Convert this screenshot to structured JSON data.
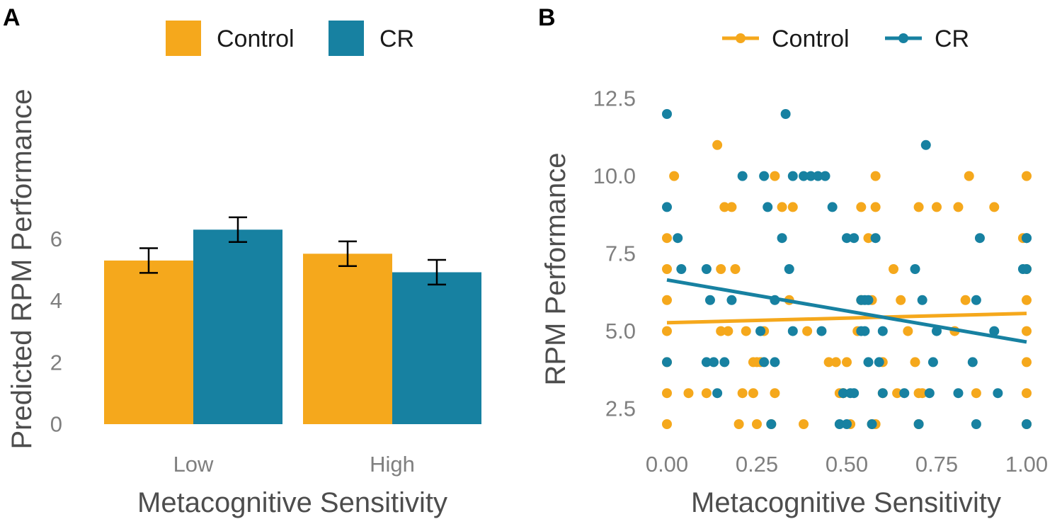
{
  "colors": {
    "control": "#F5A81C",
    "cr": "#1781A1",
    "errorbar": "#000000",
    "tick": "#7f7f7f",
    "title": "#4d4d4d"
  },
  "chart_data": [
    {
      "type": "bar",
      "panel_label": "A",
      "categories": [
        "Low",
        "High"
      ],
      "series": [
        {
          "name": "Control",
          "values": [
            5.3,
            5.52
          ],
          "errors": [
            0.4,
            0.4
          ]
        },
        {
          "name": "CR",
          "values": [
            6.3,
            4.92
          ],
          "errors": [
            0.4,
            0.4
          ]
        }
      ],
      "xlabel": "Metacognitive Sensitivity",
      "ylabel": "Predicted RPM Performance",
      "ylim": [
        0,
        7
      ],
      "yticks": [
        "0",
        "2",
        "4",
        "6"
      ],
      "legend": [
        "Control",
        "CR"
      ],
      "legend_position": "top",
      "grid": false
    },
    {
      "type": "scatter",
      "panel_label": "B",
      "xlabel": "Metacognitive Sensitivity",
      "ylabel": "RPM Performance",
      "xlim": [
        0,
        1
      ],
      "ylim": [
        1.9,
        12.3
      ],
      "xticks": [
        "0.00",
        "0.25",
        "0.50",
        "0.75",
        "1.00"
      ],
      "yticks": [
        "2.5",
        "5.0",
        "7.5",
        "10.0",
        "12.5"
      ],
      "legend": [
        "Control",
        "CR"
      ],
      "legend_position": "top",
      "grid": false,
      "series": [
        {
          "name": "Control",
          "points": [
            [
              0.0,
              2
            ],
            [
              0.0,
              3
            ],
            [
              0.0,
              4
            ],
            [
              0.0,
              5
            ],
            [
              0.0,
              6
            ],
            [
              0.0,
              7
            ],
            [
              0.0,
              8
            ],
            [
              0.02,
              10
            ],
            [
              0.06,
              3
            ],
            [
              0.11,
              3
            ],
            [
              0.14,
              11
            ],
            [
              0.15,
              5
            ],
            [
              0.15,
              7
            ],
            [
              0.16,
              9
            ],
            [
              0.17,
              5
            ],
            [
              0.18,
              9
            ],
            [
              0.19,
              7
            ],
            [
              0.2,
              2
            ],
            [
              0.21,
              3
            ],
            [
              0.22,
              5
            ],
            [
              0.24,
              3
            ],
            [
              0.24,
              4
            ],
            [
              0.25,
              2
            ],
            [
              0.25,
              4
            ],
            [
              0.26,
              4
            ],
            [
              0.27,
              5
            ],
            [
              0.29,
              2
            ],
            [
              0.3,
              3
            ],
            [
              0.3,
              10
            ],
            [
              0.32,
              9
            ],
            [
              0.34,
              6
            ],
            [
              0.35,
              9
            ],
            [
              0.38,
              2
            ],
            [
              0.39,
              5
            ],
            [
              0.45,
              4
            ],
            [
              0.47,
              4
            ],
            [
              0.48,
              3
            ],
            [
              0.49,
              3
            ],
            [
              0.49,
              3
            ],
            [
              0.5,
              4
            ],
            [
              0.51,
              2
            ],
            [
              0.53,
              5
            ],
            [
              0.54,
              6
            ],
            [
              0.54,
              9
            ],
            [
              0.56,
              8
            ],
            [
              0.57,
              2
            ],
            [
              0.57,
              6
            ],
            [
              0.58,
              2
            ],
            [
              0.58,
              9
            ],
            [
              0.58,
              10
            ],
            [
              0.6,
              3
            ],
            [
              0.6,
              4
            ],
            [
              0.63,
              7
            ],
            [
              0.64,
              3
            ],
            [
              0.65,
              6
            ],
            [
              0.67,
              5
            ],
            [
              0.69,
              4
            ],
            [
              0.7,
              2
            ],
            [
              0.7,
              3
            ],
            [
              0.7,
              9
            ],
            [
              0.71,
              3
            ],
            [
              0.75,
              9
            ],
            [
              0.8,
              5
            ],
            [
              0.81,
              9
            ],
            [
              0.83,
              6
            ],
            [
              0.84,
              10
            ],
            [
              0.86,
              3
            ],
            [
              0.91,
              9
            ],
            [
              0.99,
              8
            ],
            [
              1.0,
              2
            ],
            [
              1.0,
              3
            ],
            [
              1.0,
              4
            ],
            [
              1.0,
              5
            ],
            [
              1.0,
              6
            ],
            [
              1.0,
              7
            ],
            [
              1.0,
              10
            ]
          ],
          "trend": [
            [
              0.0,
              5.27
            ],
            [
              1.0,
              5.57
            ]
          ]
        },
        {
          "name": "CR",
          "points": [
            [
              0.0,
              4
            ],
            [
              0.0,
              9
            ],
            [
              0.0,
              12
            ],
            [
              0.03,
              8
            ],
            [
              0.04,
              7
            ],
            [
              0.11,
              7
            ],
            [
              0.11,
              4
            ],
            [
              0.12,
              6
            ],
            [
              0.13,
              4
            ],
            [
              0.14,
              3
            ],
            [
              0.16,
              4
            ],
            [
              0.18,
              6
            ],
            [
              0.21,
              10
            ],
            [
              0.26,
              5
            ],
            [
              0.27,
              4
            ],
            [
              0.27,
              10
            ],
            [
              0.28,
              9
            ],
            [
              0.29,
              2
            ],
            [
              0.3,
              4
            ],
            [
              0.3,
              6
            ],
            [
              0.32,
              8
            ],
            [
              0.33,
              12
            ],
            [
              0.34,
              7
            ],
            [
              0.35,
              10
            ],
            [
              0.35,
              5
            ],
            [
              0.38,
              10
            ],
            [
              0.4,
              10
            ],
            [
              0.42,
              10
            ],
            [
              0.43,
              5
            ],
            [
              0.44,
              10
            ],
            [
              0.46,
              9
            ],
            [
              0.48,
              2
            ],
            [
              0.49,
              3
            ],
            [
              0.5,
              8
            ],
            [
              0.5,
              2
            ],
            [
              0.51,
              3
            ],
            [
              0.52,
              8
            ],
            [
              0.52,
              3
            ],
            [
              0.54,
              6
            ],
            [
              0.54,
              5
            ],
            [
              0.55,
              6
            ],
            [
              0.55,
              5
            ],
            [
              0.56,
              6
            ],
            [
              0.56,
              4
            ],
            [
              0.57,
              2
            ],
            [
              0.58,
              8
            ],
            [
              0.59,
              4
            ],
            [
              0.6,
              3
            ],
            [
              0.6,
              5
            ],
            [
              0.66,
              3
            ],
            [
              0.69,
              7
            ],
            [
              0.7,
              2
            ],
            [
              0.71,
              6
            ],
            [
              0.72,
              11
            ],
            [
              0.73,
              3
            ],
            [
              0.74,
              4
            ],
            [
              0.75,
              5
            ],
            [
              0.81,
              3
            ],
            [
              0.85,
              4
            ],
            [
              0.86,
              6
            ],
            [
              0.86,
              2
            ],
            [
              0.87,
              8
            ],
            [
              0.91,
              5
            ],
            [
              0.92,
              3
            ],
            [
              0.99,
              7
            ],
            [
              1.0,
              2
            ],
            [
              1.0,
              7
            ],
            [
              1.0,
              8
            ],
            [
              1.0,
              8
            ]
          ],
          "trend": [
            [
              0.0,
              6.65
            ],
            [
              1.0,
              4.65
            ]
          ]
        }
      ]
    }
  ]
}
